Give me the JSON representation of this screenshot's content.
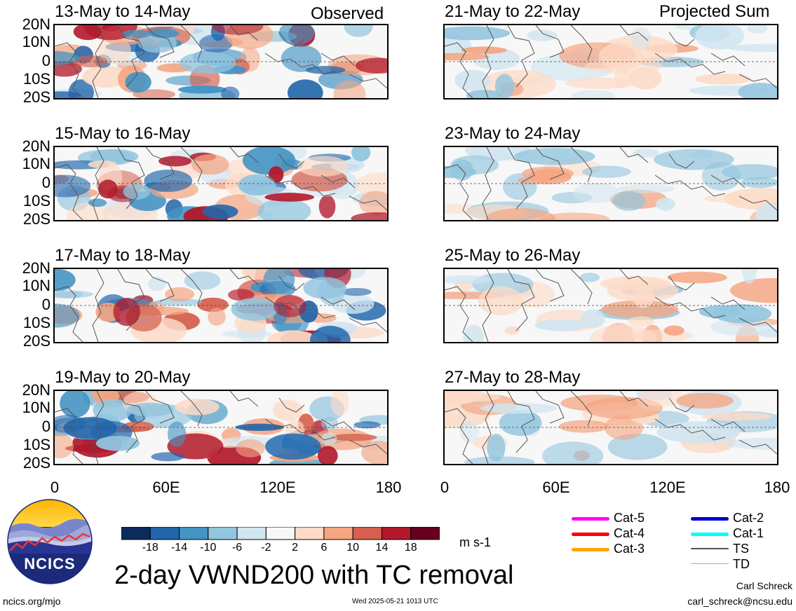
{
  "header": {
    "left_tag": "Observed",
    "right_tag": "Projected Sum"
  },
  "panels": {
    "left": [
      {
        "title": "13-May to 14-May"
      },
      {
        "title": "15-May to 16-May"
      },
      {
        "title": "17-May to 18-May"
      },
      {
        "title": "19-May to 20-May"
      }
    ],
    "right": [
      {
        "title": "21-May to 22-May"
      },
      {
        "title": "23-May to 24-May"
      },
      {
        "title": "25-May to 26-May"
      },
      {
        "title": "27-May to 28-May"
      }
    ]
  },
  "axes": {
    "lat_labels": [
      "20N",
      "10N",
      "0",
      "10S",
      "20S"
    ],
    "lon_labels": [
      "0",
      "60E",
      "120E",
      "180"
    ]
  },
  "colorbar": {
    "ticks": [
      "-18",
      "-14",
      "-10",
      "-6",
      "-2",
      "2",
      "6",
      "10",
      "14",
      "18"
    ],
    "colors": [
      "#0b2c5a",
      "#2166ac",
      "#4393c3",
      "#92c5de",
      "#d1e5f0",
      "#f7f7f7",
      "#fddbc7",
      "#f4a582",
      "#d6604d",
      "#b2182b",
      "#67001f"
    ],
    "units": "m s-1"
  },
  "title": "2-day VWND200 with TC removal",
  "tc_legend": [
    {
      "label": "Cat-5",
      "color": "#ff00ff"
    },
    {
      "label": "Cat-4",
      "color": "#ff0000"
    },
    {
      "label": "Cat-3",
      "color": "#ffa500"
    },
    {
      "label": "Cat-2",
      "color": "#0000cc"
    },
    {
      "label": "Cat-1",
      "color": "#00ffff"
    },
    {
      "label": "TS",
      "color": "#555555"
    },
    {
      "label": "TD",
      "color": "#aaaaaa"
    }
  ],
  "logo": {
    "text": "NCICS"
  },
  "footer": {
    "site": "ncics.org/mjo",
    "timestamp": "Wed 2025-05-21 1013 UTC",
    "author": "Carl Schreck",
    "email": "carl_schreck@ncsu.edu"
  }
}
